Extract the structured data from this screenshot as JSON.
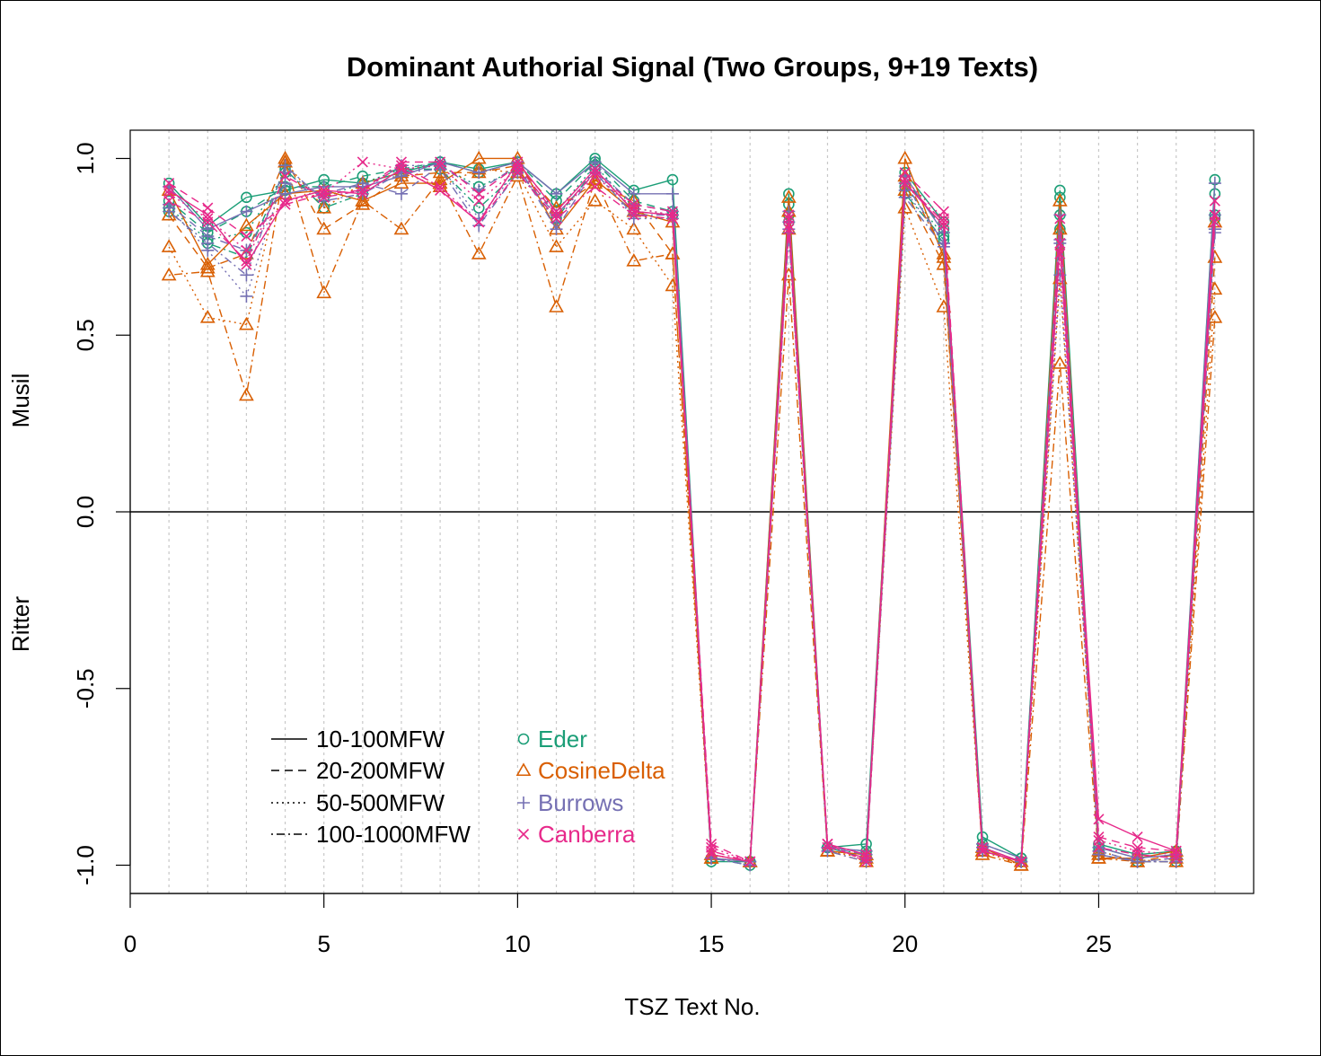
{
  "chart_data": {
    "type": "line",
    "title": "Dominant Authorial Signal (Two Groups, 9+19 Texts)",
    "xlabel": "TSZ Text No.",
    "ylabel_top": "Musil",
    "ylabel_bottom": "Ritter",
    "xlim": [
      0,
      29
    ],
    "ylim": [
      -1.08,
      1.08
    ],
    "x_ticks": [
      0,
      5,
      10,
      15,
      20,
      25
    ],
    "y_ticks": [
      -1.0,
      -0.5,
      0.0,
      0.5,
      1.0
    ],
    "y_tick_labels": [
      "-1.0",
      "-0.5",
      "0.0",
      "0.5",
      "1.0"
    ],
    "x_grid": [
      1,
      2,
      3,
      4,
      5,
      6,
      7,
      8,
      9,
      10,
      11,
      12,
      13,
      14,
      15,
      16,
      17,
      18,
      19,
      20,
      21,
      22,
      23,
      24,
      25,
      26,
      27,
      28
    ],
    "zero_line": true,
    "legend_position": "bottom-left",
    "legend_linetypes": [
      {
        "label": "10-100MFW",
        "dash": "solid"
      },
      {
        "label": "20-200MFW",
        "dash": "dashed"
      },
      {
        "label": "50-500MFW",
        "dash": "dotted"
      },
      {
        "label": "100-1000MFW",
        "dash": "dotdash"
      }
    ],
    "legend_measures": [
      {
        "label": "Eder",
        "color": "#1b9e77",
        "marker": "circle"
      },
      {
        "label": "CosineDelta",
        "color": "#d95f02",
        "marker": "triangle"
      },
      {
        "label": "Burrows",
        "color": "#7570b3",
        "marker": "plus"
      },
      {
        "label": "Canberra",
        "color": "#e7298a",
        "marker": "cross"
      }
    ],
    "x": [
      1,
      2,
      3,
      4,
      5,
      6,
      7,
      8,
      9,
      10,
      11,
      12,
      13,
      14,
      15,
      16,
      17,
      18,
      19,
      20,
      21,
      22,
      23,
      24,
      25,
      26,
      27,
      28
    ],
    "series": [
      {
        "measure": "Eder",
        "mfw": "10-100MFW",
        "values": [
          0.93,
          0.81,
          0.89,
          0.91,
          0.94,
          0.93,
          0.96,
          0.99,
          0.97,
          0.99,
          0.9,
          1.0,
          0.91,
          0.94,
          -0.99,
          -0.99,
          0.9,
          -0.95,
          -0.94,
          0.96,
          0.82,
          -0.92,
          -0.98,
          0.91,
          -0.94,
          -0.97,
          -0.96,
          0.94
        ]
      },
      {
        "measure": "Eder",
        "mfw": "20-200MFW",
        "values": [
          0.88,
          0.79,
          0.85,
          0.92,
          0.92,
          0.95,
          0.97,
          0.99,
          0.96,
          0.99,
          0.88,
          0.99,
          0.88,
          0.85,
          -0.98,
          -0.99,
          0.87,
          -0.95,
          -0.96,
          0.94,
          0.8,
          -0.94,
          -0.98,
          0.89,
          -0.95,
          -0.98,
          -0.97,
          0.9
        ]
      },
      {
        "measure": "Eder",
        "mfw": "50-500MFW",
        "values": [
          0.86,
          0.77,
          0.79,
          0.96,
          0.89,
          0.93,
          0.97,
          0.98,
          0.92,
          0.97,
          0.85,
          0.98,
          0.86,
          0.84,
          -0.98,
          -0.99,
          0.84,
          -0.95,
          -0.97,
          0.92,
          0.78,
          -0.95,
          -0.99,
          0.84,
          -0.96,
          -0.99,
          -0.98,
          0.84
        ]
      },
      {
        "measure": "Eder",
        "mfw": "100-1000MFW",
        "values": [
          0.85,
          0.76,
          0.72,
          0.97,
          0.86,
          0.9,
          0.97,
          0.97,
          0.86,
          0.96,
          0.83,
          0.97,
          0.85,
          0.84,
          -0.98,
          -1.0,
          0.82,
          -0.95,
          -0.98,
          0.9,
          0.77,
          -0.96,
          -0.99,
          0.8,
          -0.97,
          -0.99,
          -0.99,
          0.83
        ]
      },
      {
        "measure": "CosineDelta",
        "mfw": "10-100MFW",
        "values": [
          0.91,
          0.7,
          0.81,
          0.9,
          0.91,
          0.88,
          0.93,
          0.93,
          1.0,
          1.0,
          0.8,
          0.94,
          0.85,
          0.82,
          -0.98,
          -0.99,
          0.89,
          -0.96,
          -0.97,
          1.0,
          0.72,
          -0.95,
          -1.0,
          0.88,
          -0.98,
          -0.98,
          -0.96,
          0.82
        ]
      },
      {
        "measure": "CosineDelta",
        "mfw": "20-200MFW",
        "values": [
          0.84,
          0.69,
          0.73,
          1.0,
          0.8,
          0.87,
          0.95,
          0.96,
          0.96,
          0.98,
          0.86,
          0.93,
          0.88,
          0.73,
          -0.98,
          -0.99,
          0.85,
          -0.96,
          -0.97,
          0.91,
          0.7,
          -0.96,
          -0.99,
          0.8,
          -0.97,
          -0.99,
          -0.97,
          0.72
        ]
      },
      {
        "measure": "CosineDelta",
        "mfw": "50-500MFW",
        "values": [
          0.75,
          0.55,
          0.53,
          0.99,
          0.86,
          0.93,
          0.96,
          0.92,
          0.97,
          0.96,
          0.75,
          0.88,
          0.8,
          0.64,
          -0.97,
          -0.99,
          0.8,
          -0.96,
          -0.98,
          0.86,
          0.58,
          -0.96,
          -1.0,
          0.66,
          -0.96,
          -0.99,
          -0.98,
          0.63
        ]
      },
      {
        "measure": "CosineDelta",
        "mfw": "100-1000MFW",
        "values": [
          0.67,
          0.68,
          0.33,
          0.99,
          0.62,
          0.88,
          0.8,
          0.94,
          0.73,
          0.95,
          0.58,
          0.94,
          0.71,
          0.73,
          -0.97,
          -0.99,
          0.67,
          -0.96,
          -0.99,
          0.95,
          0.73,
          -0.97,
          -1.0,
          0.42,
          -0.98,
          -0.99,
          -0.99,
          0.55
        ]
      },
      {
        "measure": "Burrows",
        "mfw": "10-100MFW",
        "values": [
          0.92,
          0.8,
          0.85,
          0.9,
          0.92,
          0.92,
          0.95,
          0.99,
          0.96,
          0.99,
          0.9,
          0.99,
          0.9,
          0.9,
          -0.98,
          -0.99,
          0.85,
          -0.95,
          -0.96,
          0.95,
          0.79,
          -0.94,
          -0.98,
          0.84,
          -0.95,
          -0.98,
          -0.97,
          0.93
        ]
      },
      {
        "measure": "Burrows",
        "mfw": "20-200MFW",
        "values": [
          0.87,
          0.78,
          0.74,
          0.93,
          0.9,
          0.93,
          0.9,
          0.98,
          0.91,
          0.98,
          0.8,
          0.97,
          0.87,
          0.85,
          -0.98,
          -0.99,
          0.82,
          -0.95,
          -0.97,
          0.93,
          0.76,
          -0.95,
          -0.99,
          0.77,
          -0.96,
          -0.99,
          -0.98,
          0.84
        ]
      },
      {
        "measure": "Burrows",
        "mfw": "50-500MFW",
        "values": [
          0.86,
          0.74,
          0.61,
          0.96,
          0.89,
          0.91,
          0.98,
          0.98,
          0.83,
          0.97,
          0.82,
          0.97,
          0.83,
          0.83,
          -0.98,
          -1.0,
          0.8,
          -0.95,
          -0.98,
          0.91,
          0.76,
          -0.96,
          -0.99,
          0.67,
          -0.97,
          -0.99,
          -0.99,
          0.8
        ]
      },
      {
        "measure": "Burrows",
        "mfw": "100-1000MFW",
        "values": [
          0.85,
          0.76,
          0.67,
          0.98,
          0.88,
          0.9,
          0.96,
          0.97,
          0.81,
          0.96,
          0.84,
          0.96,
          0.84,
          0.84,
          -0.98,
          -1.0,
          0.79,
          -0.96,
          -0.99,
          0.89,
          0.75,
          -0.96,
          -0.99,
          0.76,
          -0.97,
          -0.99,
          -0.99,
          0.79
        ]
      },
      {
        "measure": "Canberra",
        "mfw": "10-100MFW",
        "values": [
          0.91,
          0.84,
          0.7,
          0.88,
          0.91,
          0.9,
          0.97,
          0.91,
          0.82,
          0.99,
          0.85,
          0.97,
          0.85,
          0.84,
          -0.97,
          -0.99,
          0.83,
          -0.94,
          -0.97,
          0.93,
          0.81,
          -0.95,
          -0.99,
          0.76,
          -0.87,
          -0.92,
          -0.96,
          0.88
        ]
      },
      {
        "measure": "Canberra",
        "mfw": "20-200MFW",
        "values": [
          0.93,
          0.86,
          0.78,
          0.87,
          0.9,
          0.91,
          0.99,
          0.99,
          0.9,
          0.98,
          0.84,
          0.96,
          0.87,
          0.85,
          -0.94,
          -0.99,
          0.84,
          -0.95,
          -0.98,
          0.96,
          0.85,
          -0.96,
          -0.99,
          0.83,
          -0.92,
          -0.95,
          -0.96,
          0.84
        ]
      },
      {
        "measure": "Canberra",
        "mfw": "50-500MFW",
        "values": [
          0.9,
          0.83,
          0.74,
          0.88,
          0.9,
          0.99,
          0.97,
          0.98,
          0.88,
          0.97,
          0.84,
          0.95,
          0.86,
          0.84,
          -0.95,
          -0.99,
          0.81,
          -0.94,
          -0.99,
          0.94,
          0.83,
          -0.96,
          -0.99,
          0.73,
          -0.93,
          -0.96,
          -0.97,
          0.84
        ]
      },
      {
        "measure": "Canberra",
        "mfw": "100-1000MFW",
        "values": [
          0.88,
          0.82,
          0.71,
          0.95,
          0.89,
          0.91,
          0.98,
          0.92,
          0.82,
          0.96,
          0.83,
          0.92,
          0.84,
          0.83,
          -0.96,
          -0.99,
          0.8,
          -0.94,
          -0.99,
          0.93,
          0.82,
          -0.96,
          -0.99,
          0.76,
          -0.95,
          -0.97,
          -0.98,
          0.82
        ]
      }
    ]
  }
}
